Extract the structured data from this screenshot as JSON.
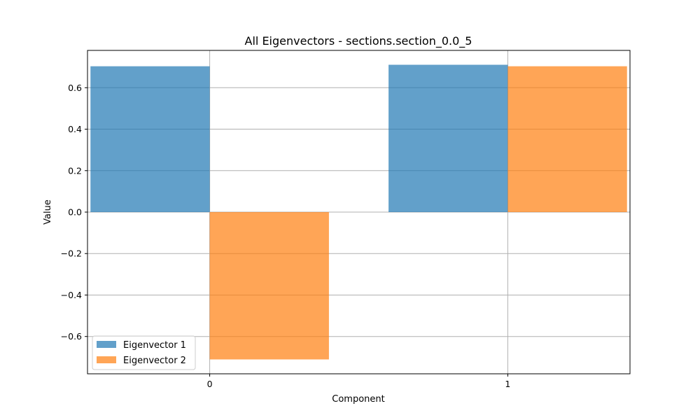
{
  "chart_data": {
    "type": "bar",
    "title": "All Eigenvectors - sections.section_0.0_5",
    "xlabel": "Component",
    "ylabel": "Value",
    "categories": [
      "0",
      "1"
    ],
    "series": [
      {
        "name": "Eigenvector 1",
        "values": [
          0.7035,
          0.7107
        ],
        "color": "#1f77b4"
      },
      {
        "name": "Eigenvector 2",
        "values": [
          -0.7107,
          0.7035
        ],
        "color": "#ff7f0e"
      }
    ],
    "ylim": [
      -0.78,
      0.78
    ],
    "yticks": [
      -0.6,
      -0.4,
      -0.2,
      0.0,
      0.2,
      0.4,
      0.6
    ],
    "ytick_labels": [
      "−0.6",
      "−0.4",
      "−0.2",
      "0.0",
      "0.2",
      "0.4",
      "0.6"
    ],
    "bar_opacity": 0.7,
    "grid": true,
    "legend_position": "lower-left"
  }
}
